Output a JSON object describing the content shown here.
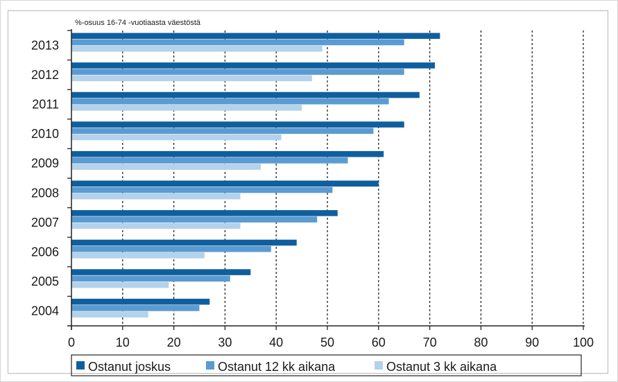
{
  "chart_data": {
    "type": "bar",
    "orientation": "horizontal",
    "title": "",
    "subtitle": "%-osuus 16-74 -vuotiaasta väestöstä",
    "xlabel": "",
    "ylabel": "",
    "xlim": [
      0,
      100
    ],
    "x_ticks": [
      "0",
      "10",
      "20",
      "30",
      "40",
      "50",
      "60",
      "70",
      "80",
      "90",
      "100"
    ],
    "gridlines": "vertical dashed",
    "legend_position": "bottom",
    "categories": [
      "2013",
      "2012",
      "2011",
      "2010",
      "2009",
      "2008",
      "2007",
      "2006",
      "2005",
      "2004"
    ],
    "series": [
      {
        "name": "Ostanut joskus",
        "color": "#0f5f9e",
        "values": [
          72,
          71,
          68,
          65,
          61,
          60,
          52,
          44,
          35,
          27
        ]
      },
      {
        "name": "Ostanut 12 kk aikana",
        "color": "#5b9bd1",
        "values": [
          65,
          65,
          62,
          59,
          54,
          51,
          48,
          39,
          31,
          25
        ]
      },
      {
        "name": "Ostanut 3 kk aikana",
        "color": "#b3d2ec",
        "values": [
          49,
          47,
          45,
          41,
          37,
          33,
          33,
          26,
          19,
          15
        ]
      }
    ]
  }
}
